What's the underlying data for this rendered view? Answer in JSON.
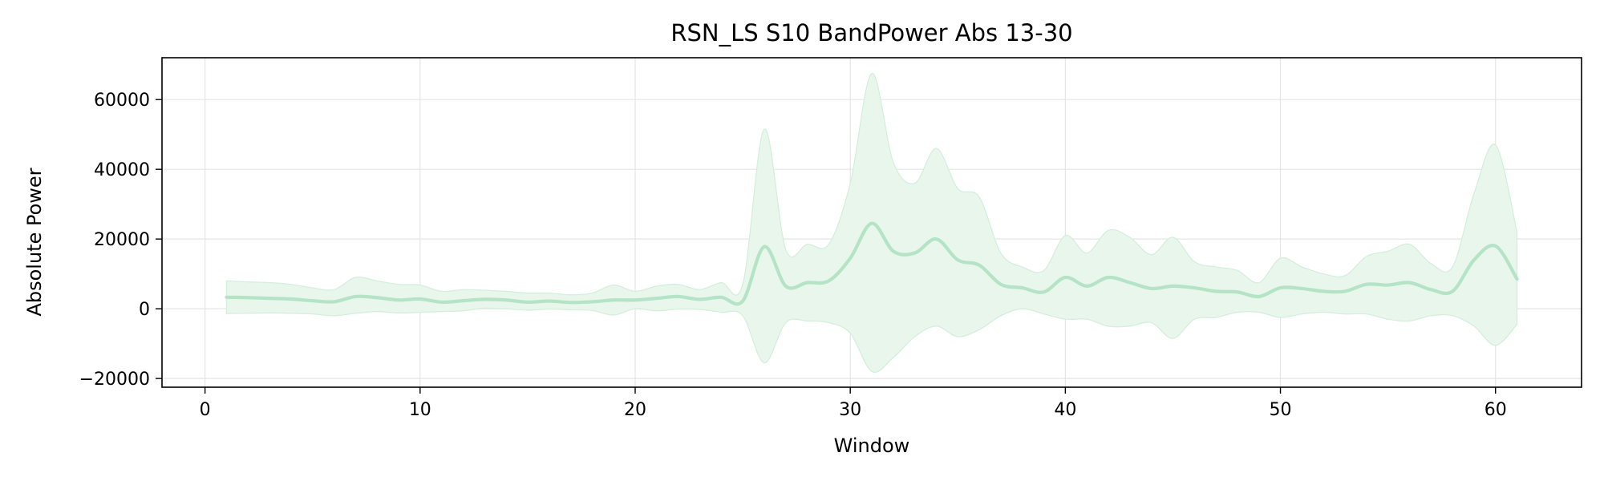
{
  "chart_data": {
    "type": "line",
    "title": "RSN_LS S10 BandPower Abs 13-30",
    "xlabel": "Window",
    "ylabel": "Absolute Power",
    "xlim": [
      -2,
      64
    ],
    "ylim": [
      -22500,
      72000
    ],
    "xticks": [
      0,
      10,
      20,
      30,
      40,
      50,
      60
    ],
    "yticks": [
      -20000,
      0,
      20000,
      40000,
      60000
    ],
    "ytick_labels": [
      "−20000",
      "0",
      "20000",
      "40000",
      "60000"
    ],
    "grid": true,
    "legend": "none",
    "colors": {
      "line": "#b5e3c6",
      "band": "#e8f6ec",
      "band_edge": "#d3eedb",
      "grid": "#e5e5e5",
      "axis": "#000000"
    },
    "series": [
      {
        "x": [
          1,
          2,
          3,
          4,
          5,
          6,
          7,
          8,
          9,
          10,
          11,
          12,
          13,
          14,
          15,
          16,
          17,
          18,
          19,
          20,
          21,
          22,
          23,
          24,
          25,
          26,
          27,
          28,
          29,
          30,
          31,
          32,
          33,
          34,
          35,
          36,
          37,
          38,
          39,
          40,
          41,
          42,
          43,
          44,
          45,
          46,
          47,
          48,
          49,
          50,
          51,
          52,
          53,
          54,
          55,
          56,
          57,
          58,
          59,
          60,
          61
        ],
        "mean": [
          3300,
          3200,
          3000,
          2800,
          2300,
          2000,
          3500,
          3200,
          2500,
          2800,
          1900,
          2300,
          2700,
          2500,
          1900,
          2200,
          1800,
          2000,
          2500,
          2500,
          3000,
          3500,
          2700,
          3300,
          2200,
          17800,
          6500,
          7500,
          8000,
          14500,
          24500,
          16500,
          16000,
          20000,
          14000,
          12500,
          7000,
          6000,
          4800,
          9000,
          6500,
          9000,
          7500,
          5800,
          6500,
          6000,
          5000,
          4800,
          3500,
          6000,
          5800,
          5000,
          5000,
          7000,
          6800,
          7500,
          5500,
          5000,
          14000,
          18000,
          8500
        ],
        "upper": [
          8000,
          7700,
          7500,
          7000,
          6000,
          5500,
          9000,
          8000,
          7000,
          6800,
          5000,
          5500,
          5300,
          5000,
          4500,
          4500,
          4000,
          4500,
          6800,
          5000,
          6500,
          7000,
          5500,
          7500,
          7000,
          51500,
          17000,
          18500,
          18500,
          36000,
          67500,
          42000,
          36000,
          46000,
          34500,
          32000,
          16000,
          12000,
          11000,
          21000,
          16000,
          22500,
          20500,
          15500,
          20500,
          13500,
          12000,
          11000,
          7500,
          14500,
          12000,
          10000,
          9500,
          15000,
          16500,
          18500,
          13000,
          12000,
          33000,
          47000,
          22000
        ],
        "lower": [
          -1400,
          -1300,
          -1200,
          -1300,
          -1500,
          -2000,
          -1300,
          -800,
          -1200,
          -1000,
          -800,
          -600,
          200,
          0,
          -400,
          -100,
          -300,
          -500,
          -1800,
          0,
          -600,
          -100,
          -200,
          -1000,
          -2000,
          -15500,
          -4000,
          -3500,
          -4000,
          -7000,
          -18000,
          -14000,
          -8000,
          -5000,
          -8000,
          -6000,
          -2000,
          0,
          -1500,
          -3000,
          -3000,
          -5000,
          -5000,
          -4000,
          -8500,
          -3000,
          -2500,
          -1000,
          -1000,
          -2500,
          -1500,
          -1000,
          -1500,
          -1500,
          -3000,
          -3500,
          -2000,
          -2000,
          -5000,
          -10500,
          -4500
        ]
      }
    ]
  }
}
